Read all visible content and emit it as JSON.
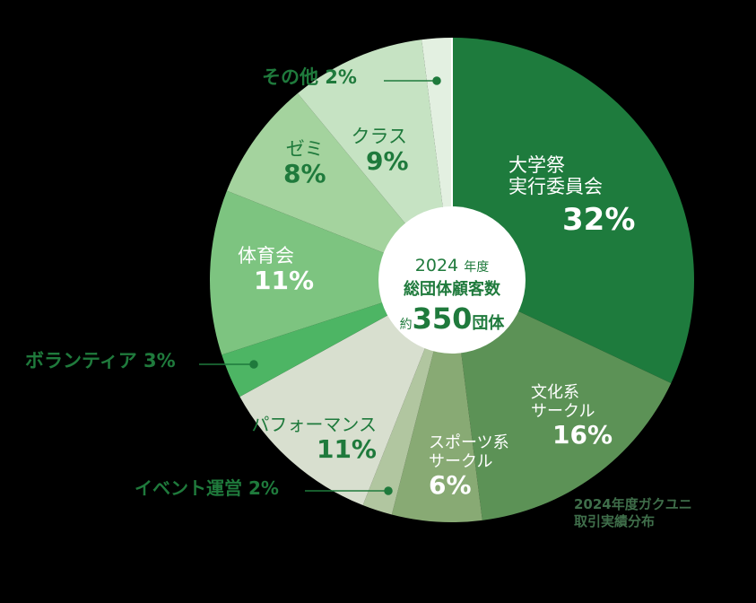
{
  "chart_data": {
    "type": "pie",
    "variant": "donut",
    "title": "2024年度ガクユニ取引実績分布",
    "center_label": {
      "line1_year": "2024",
      "line1_suffix": "年度",
      "line2": "総団体顧客数",
      "line3_prefix": "約",
      "line3_value": "350",
      "line3_suffix": "団体"
    },
    "unit": "%",
    "slices": [
      {
        "label": "大学祭実行委員会",
        "value": 32,
        "color": "#1e7b3d"
      },
      {
        "label": "文化系サークル",
        "value": 16,
        "color": "#5c9256"
      },
      {
        "label": "スポーツ系サークル",
        "value": 6,
        "color": "#88aa74"
      },
      {
        "label": "イベント運営",
        "value": 2,
        "color": "#b1c6a0"
      },
      {
        "label": "パフォーマンス",
        "value": 11,
        "color": "#d8dfcf"
      },
      {
        "label": "ボランティア",
        "value": 3,
        "color": "#4db564"
      },
      {
        "label": "体育会",
        "value": 11,
        "color": "#7dc480"
      },
      {
        "label": "ゼミ",
        "value": 8,
        "color": "#a4d39e"
      },
      {
        "label": "クラス",
        "value": 9,
        "color": "#c6e3c3"
      },
      {
        "label": "その他",
        "value": 2,
        "color": "#e3f0e1"
      }
    ],
    "start_angle": "12 o'clock",
    "direction": "clockwise",
    "legend": "none (inline labels)"
  },
  "labels": {
    "daigakusai_name1": "大学祭",
    "daigakusai_name2": "実行委員会",
    "daigakusai_pct": "32%",
    "bunka_name1": "文化系",
    "bunka_name2": "サークル",
    "bunka_pct": "16%",
    "sports_name1": "スポーツ系",
    "sports_name2": "サークル",
    "sports_pct": "6%",
    "event": "イベント運営 2%",
    "perf_name": "パフォーマンス",
    "perf_pct": "11%",
    "volunteer": "ボランティア 3%",
    "taiiku_name": "体育会",
    "taiiku_pct": "11%",
    "zemi_name": "ゼミ",
    "zemi_pct": "8%",
    "class_name": "クラス",
    "class_pct": "9%",
    "other": "その他 2%"
  },
  "caption": {
    "line1": "2024年度ガクユニ",
    "line2": "取引実績分布"
  }
}
